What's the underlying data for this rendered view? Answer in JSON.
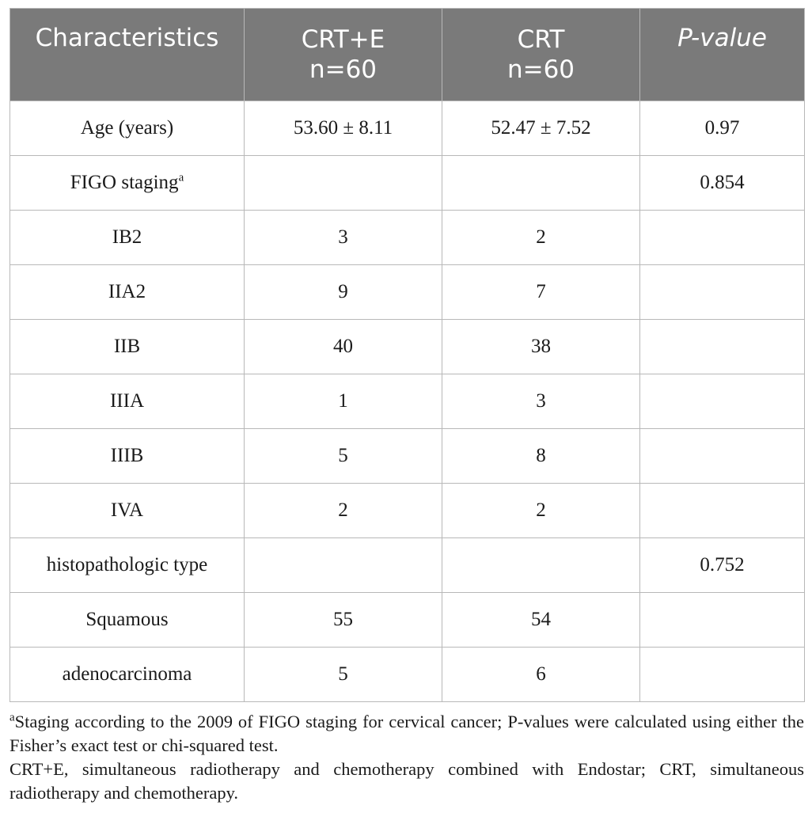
{
  "headers": {
    "col1": "Characteristics",
    "col2_line1": "CRT+E",
    "col2_line2": "n=60",
    "col3_line1": "CRT",
    "col3_line2": "n=60",
    "col4": "P-value"
  },
  "rows": [
    {
      "label": "Age (years)",
      "sup": "",
      "crte": "53.60 ± 8.11",
      "crt": "52.47 ± 7.52",
      "p": "0.97"
    },
    {
      "label": "FIGO staging",
      "sup": "a",
      "crte": "",
      "crt": "",
      "p": "0.854"
    },
    {
      "label": "IB2",
      "sup": "",
      "crte": "3",
      "crt": "2",
      "p": ""
    },
    {
      "label": "IIA2",
      "sup": "",
      "crte": "9",
      "crt": "7",
      "p": ""
    },
    {
      "label": "IIB",
      "sup": "",
      "crte": "40",
      "crt": "38",
      "p": ""
    },
    {
      "label": "IIIA",
      "sup": "",
      "crte": "1",
      "crt": "3",
      "p": ""
    },
    {
      "label": "IIIB",
      "sup": "",
      "crte": "5",
      "crt": "8",
      "p": ""
    },
    {
      "label": "IVA",
      "sup": "",
      "crte": "2",
      "crt": "2",
      "p": ""
    },
    {
      "label": "histopathologic type",
      "sup": "",
      "crte": "",
      "crt": "",
      "p": "0.752"
    },
    {
      "label": "Squamous",
      "sup": "",
      "crte": "55",
      "crt": "54",
      "p": ""
    },
    {
      "label": "adenocarcinoma",
      "sup": "",
      "crte": "5",
      "crt": "6",
      "p": ""
    }
  ],
  "footnotes": {
    "note_sup": "a",
    "note1": "Staging according to the 2009 of FIGO staging for cervical cancer; P-values were calculated using either the Fisher’s exact test or chi-squared test.",
    "note2": "CRT+E, simultaneous radiotherapy and chemotherapy combined with Endostar; CRT, simultaneous radiotherapy and chemotherapy."
  },
  "colors": {
    "header_bg": "#7a7a7a",
    "header_text": "#ffffff",
    "border": "#b8b8b8"
  }
}
